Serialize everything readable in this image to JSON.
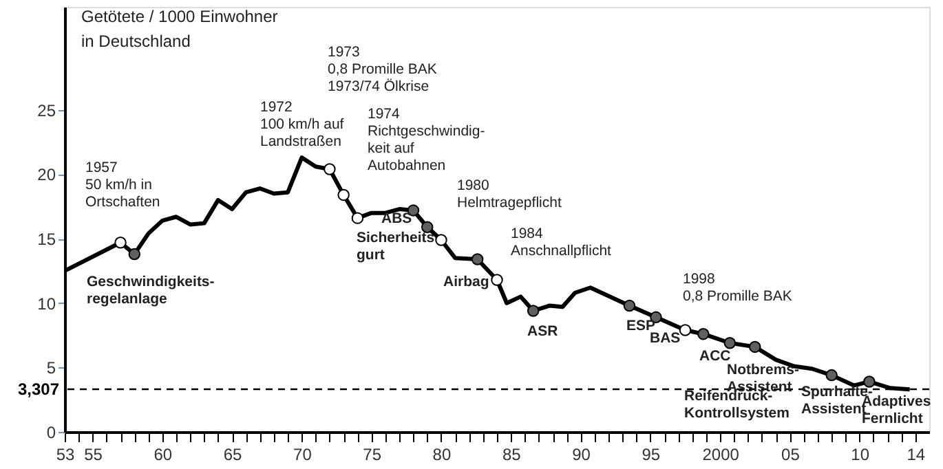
{
  "chart_data": {
    "type": "line",
    "ylabel": "Getötete / 1000 Einwohner\nin Deutschland",
    "xlim": [
      1953,
      2015
    ],
    "ylim": [
      0,
      33
    ],
    "xticks": [
      {
        "value": 1953,
        "label": "53"
      },
      {
        "value": 1954,
        "label": null
      },
      {
        "value": 1955,
        "label": "55"
      },
      {
        "value": 1956,
        "label": null
      },
      {
        "value": 1957,
        "label": null
      },
      {
        "value": 1958,
        "label": null
      },
      {
        "value": 1959,
        "label": null
      },
      {
        "value": 1960,
        "label": "60"
      },
      {
        "value": 1961,
        "label": null
      },
      {
        "value": 1962,
        "label": null
      },
      {
        "value": 1963,
        "label": null
      },
      {
        "value": 1964,
        "label": null
      },
      {
        "value": 1965,
        "label": "65"
      },
      {
        "value": 1966,
        "label": null
      },
      {
        "value": 1967,
        "label": null
      },
      {
        "value": 1968,
        "label": null
      },
      {
        "value": 1969,
        "label": null
      },
      {
        "value": 1970,
        "label": "70"
      },
      {
        "value": 1971,
        "label": null
      },
      {
        "value": 1972,
        "label": null
      },
      {
        "value": 1973,
        "label": null
      },
      {
        "value": 1974,
        "label": null
      },
      {
        "value": 1975,
        "label": "75"
      },
      {
        "value": 1976,
        "label": null
      },
      {
        "value": 1977,
        "label": null
      },
      {
        "value": 1978,
        "label": null
      },
      {
        "value": 1979,
        "label": null
      },
      {
        "value": 1980,
        "label": "80"
      },
      {
        "value": 1981,
        "label": null
      },
      {
        "value": 1982,
        "label": null
      },
      {
        "value": 1983,
        "label": null
      },
      {
        "value": 1984,
        "label": null
      },
      {
        "value": 1985,
        "label": "85"
      },
      {
        "value": 1986,
        "label": null
      },
      {
        "value": 1987,
        "label": null
      },
      {
        "value": 1988,
        "label": null
      },
      {
        "value": 1989,
        "label": null
      },
      {
        "value": 1990,
        "label": "90"
      },
      {
        "value": 1991,
        "label": null
      },
      {
        "value": 1992,
        "label": null
      },
      {
        "value": 1993,
        "label": null
      },
      {
        "value": 1994,
        "label": null
      },
      {
        "value": 1995,
        "label": "95"
      },
      {
        "value": 1996,
        "label": null
      },
      {
        "value": 1997,
        "label": null
      },
      {
        "value": 1998,
        "label": null
      },
      {
        "value": 1999,
        "label": null
      },
      {
        "value": 2000,
        "label": "2000"
      },
      {
        "value": 2001,
        "label": null
      },
      {
        "value": 2002,
        "label": null
      },
      {
        "value": 2003,
        "label": null
      },
      {
        "value": 2004,
        "label": null
      },
      {
        "value": 2005,
        "label": "05"
      },
      {
        "value": 2006,
        "label": null
      },
      {
        "value": 2007,
        "label": null
      },
      {
        "value": 2008,
        "label": null
      },
      {
        "value": 2009,
        "label": null
      },
      {
        "value": 2010,
        "label": "10"
      },
      {
        "value": 2011,
        "label": null
      },
      {
        "value": 2012,
        "label": null
      },
      {
        "value": 2013,
        "label": null
      },
      {
        "value": 2014,
        "label": "14"
      }
    ],
    "yticks": [
      0,
      5,
      10,
      15,
      20,
      25
    ],
    "grid": false,
    "series": [
      {
        "color": "#000000",
        "marker": "none",
        "line_style": "solid",
        "x": [
          1953,
          1957,
          1958,
          1959,
          1960,
          1961,
          1962,
          1963,
          1964,
          1965,
          1966,
          1967,
          1968,
          1969,
          1970,
          1971,
          1972,
          1973,
          1974,
          1975,
          1976,
          1977,
          1978,
          1979,
          1980,
          1981,
          1982.6,
          1984,
          1984.7,
          1985.7,
          1986.6,
          1987.8,
          1988.7,
          1989.6,
          1990.7,
          1993.5,
          1995.4,
          1997.5,
          1998.8,
          2000.7,
          2002.5,
          2004,
          2005.3,
          2006.6,
          2008,
          2009.6,
          2010.7,
          2012.2,
          2013.6
        ],
        "values": [
          12.5,
          14.7,
          13.8,
          15.4,
          16.4,
          16.7,
          16.1,
          16.2,
          18.0,
          17.3,
          18.6,
          18.9,
          18.5,
          18.6,
          21.3,
          20.6,
          20.4,
          18.4,
          16.6,
          17.0,
          17.0,
          17.3,
          17.2,
          15.9,
          14.9,
          13.5,
          13.4,
          11.8,
          10.0,
          10.5,
          9.4,
          9.8,
          9.7,
          10.8,
          11.2,
          9.8,
          8.9,
          7.9,
          7.6,
          6.9,
          6.6,
          5.6,
          5.1,
          4.9,
          4.4,
          3.6,
          3.9,
          3.4,
          3.3
        ]
      },
      {
        "type": "scatter",
        "color": "#ffffff",
        "marker": "circle",
        "x": [
          1957,
          1972,
          1973,
          1974,
          1980,
          1984,
          1997.5
        ],
        "values": [
          14.7,
          20.4,
          18.4,
          16.6,
          14.9,
          11.8,
          7.9
        ]
      },
      {
        "type": "scatter",
        "color": "#606060",
        "marker": "circle",
        "x": [
          1958,
          1978,
          1979,
          1982.6,
          1986.6,
          1993.5,
          1995.4,
          1998.8,
          2000.7,
          2002.5,
          2008,
          2010.7
        ],
        "values": [
          13.8,
          17.2,
          15.9,
          13.4,
          9.4,
          9.8,
          8.9,
          7.6,
          6.9,
          6.6,
          4.4,
          3.9
        ]
      }
    ],
    "ref_lines": [
      {
        "axis": "y",
        "value": 3.307,
        "label": "3,307",
        "line_style": "dashed",
        "color": "#000000"
      }
    ],
    "annotations": [
      "1957\n50 km/h in\nOrtschaften",
      "Geschwindigkeits-\nregelanlage",
      "1972\n100 km/h auf\nLandstraßen",
      "1973\n0,8 Promille BAK\n1973/74 Ölkrise",
      "1974\nRichtgeschwindig-\nkeit auf\nAutobahnen",
      "ABS",
      "Sicherheits\ngurt",
      "1980\nHelmtragepflicht",
      "Airbag",
      "1984\nAnschnallpflicht",
      "ASR",
      "ESP",
      "BAS",
      "1998\n0,8 Promille BAK",
      "ACC",
      "Notbrems-\nAssistent",
      "Reifendruck-\nKontrollsystem",
      "Spurhalte-\nAssistent",
      "Adaptives\nFernlicht"
    ]
  }
}
